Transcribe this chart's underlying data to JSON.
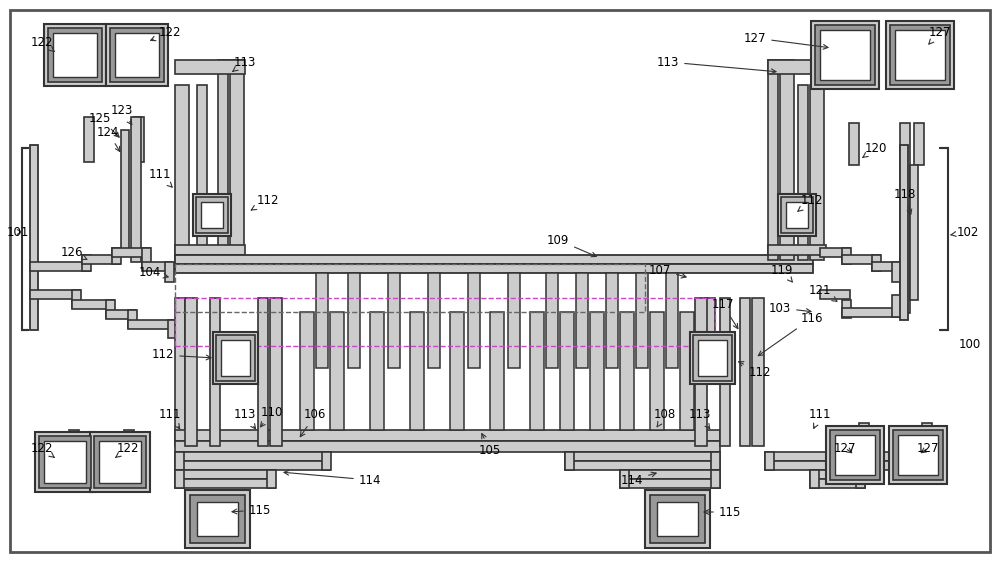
{
  "bg": "#ffffff",
  "lc": "#333333",
  "fl": "#cccccc",
  "fg": "#999999",
  "fw": "#ffffff",
  "fgray": "#aaaaaa",
  "dashed_gray": "#555555",
  "dashed_pink": "#cc66cc"
}
